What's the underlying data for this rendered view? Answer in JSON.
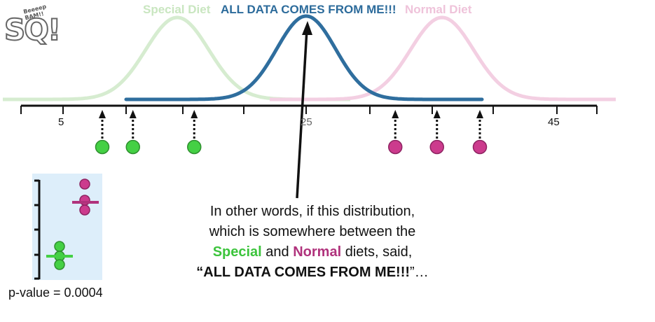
{
  "legend": {
    "special": "Special Diet",
    "all_data": "ALL DATA COMES FROM ME!!!",
    "normal": "Normal Diet"
  },
  "axis_ticks": [
    "5",
    "25",
    "45"
  ],
  "caption": {
    "line1": "In other words, if this distribution,",
    "line2": "which is somewhere between the",
    "special": "Special",
    "and": "and",
    "normal": "Normal",
    "line3_end": "diets, said,",
    "quote_open": "“",
    "quote_bold": "ALL DATA COMES FROM ME!!!",
    "quote_close": "”…"
  },
  "p_value": "p-value = 0.0004",
  "logo": {
    "big": "SQ!",
    "small": "Beeeep BAM!!"
  },
  "points": {
    "special": [
      8.2,
      10.7,
      15.7
    ],
    "normal": [
      32.1,
      35.5,
      39.0
    ]
  },
  "colors": {
    "special_curve": "#d6ecd0",
    "normal_curve": "#f3cfe2",
    "all_curve": "#2f6e9e",
    "green_dot": "#44d044",
    "magenta_dot": "#cc3b8d",
    "inset_bg": "#ddeefa"
  },
  "icons": [
    "arrow-up-icon"
  ]
}
